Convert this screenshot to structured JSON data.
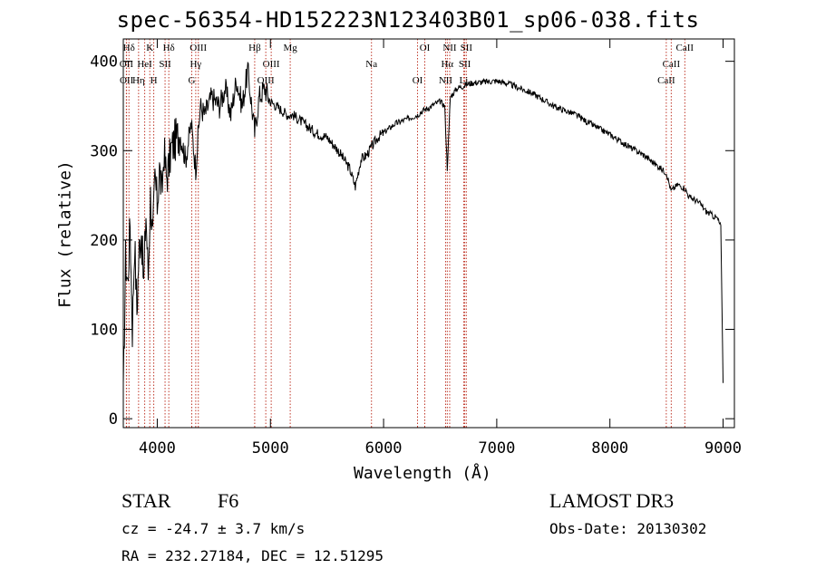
{
  "chart_data": {
    "type": "line",
    "title": "spec-56354-HD152223N123403B01_sp06-038.fits",
    "xlabel": "Wavelength (Å)",
    "ylabel": "Flux (relative)",
    "xlim": [
      3700,
      9100
    ],
    "ylim": [
      -10,
      425
    ],
    "xticks": [
      4000,
      5000,
      6000,
      7000,
      8000,
      9000
    ],
    "yticks": [
      0,
      100,
      200,
      300,
      400
    ],
    "series": [
      {
        "color": "#000000",
        "x": [
          3700,
          3720,
          3740,
          3760,
          3780,
          3800,
          3820,
          3840,
          3860,
          3880,
          3900,
          3920,
          3940,
          3960,
          3980,
          4000,
          4020,
          4040,
          4060,
          4080,
          4100,
          4120,
          4150,
          4200,
          4250,
          4300,
          4340,
          4380,
          4420,
          4480,
          4550,
          4600,
          4650,
          4700,
          4750,
          4800,
          4861,
          4900,
          4950,
          5000,
          5050,
          5100,
          5150,
          5200,
          5250,
          5300,
          5400,
          5500,
          5600,
          5700,
          5750,
          5800,
          5850,
          5900,
          5950,
          6000,
          6100,
          6200,
          6300,
          6350,
          6400,
          6450,
          6500,
          6540,
          6563,
          6590,
          6620,
          6650,
          6700,
          6750,
          6800,
          6900,
          7000,
          7100,
          7200,
          7300,
          7400,
          7500,
          7600,
          7700,
          7800,
          7900,
          8000,
          8100,
          8200,
          8300,
          8400,
          8500,
          8540,
          8600,
          8662,
          8700,
          8750,
          8800,
          8850,
          8900,
          8950,
          8980,
          9000
        ],
        "y": [
          20,
          180,
          150,
          220,
          100,
          200,
          120,
          190,
          210,
          150,
          230,
          160,
          250,
          200,
          270,
          240,
          280,
          250,
          300,
          270,
          280,
          300,
          310,
          320,
          290,
          330,
          280,
          350,
          340,
          360,
          350,
          370,
          340,
          380,
          350,
          390,
          320,
          360,
          370,
          355,
          350,
          345,
          340,
          340,
          335,
          330,
          320,
          315,
          300,
          280,
          260,
          290,
          295,
          305,
          315,
          320,
          330,
          335,
          340,
          345,
          348,
          352,
          355,
          350,
          280,
          360,
          365,
          370,
          372,
          375,
          376,
          377,
          378,
          375,
          370,
          365,
          358,
          350,
          345,
          340,
          332,
          325,
          318,
          310,
          302,
          295,
          285,
          275,
          255,
          262,
          258,
          248,
          245,
          240,
          232,
          228,
          224,
          215,
          40
        ]
      }
    ],
    "line_markers": [
      {
        "label": "Hδ",
        "x": 3750
      },
      {
        "label": "OII",
        "x": 3727
      },
      {
        "label": "OII",
        "x": 3729
      },
      {
        "label": "K",
        "x": 3934
      },
      {
        "label": "HeI",
        "x": 3889
      },
      {
        "label": "Hη",
        "x": 3835
      },
      {
        "label": "Hδ",
        "x": 4102
      },
      {
        "label": "SII",
        "x": 4069
      },
      {
        "label": "H",
        "x": 3969
      },
      {
        "label": "OIII",
        "x": 4363
      },
      {
        "label": "Hγ",
        "x": 4340
      },
      {
        "label": "G",
        "x": 4305
      },
      {
        "label": "Hβ",
        "x": 4861
      },
      {
        "label": "OIII",
        "x": 5007
      },
      {
        "label": "OIII",
        "x": 4959
      },
      {
        "label": "Mg",
        "x": 5175
      },
      {
        "label": "Na",
        "x": 5893
      },
      {
        "label": "OI",
        "x": 6300
      },
      {
        "label": "OI",
        "x": 6364
      },
      {
        "label": "Hα",
        "x": 6563
      },
      {
        "label": "NII",
        "x": 6548
      },
      {
        "label": "NII",
        "x": 6584
      },
      {
        "label": "SII",
        "x": 6717
      },
      {
        "label": "Li",
        "x": 6708
      },
      {
        "label": "SII",
        "x": 6731
      },
      {
        "label": "CaII",
        "x": 8542
      },
      {
        "label": "CaII",
        "x": 8498
      },
      {
        "label": "CaII",
        "x": 8662
      }
    ]
  },
  "info": {
    "object_class": "STAR",
    "subclass": "F6",
    "survey": "LAMOST DR3",
    "cz": "cz = -24.7 ± 3.7 km/s",
    "obs_date": "Obs-Date: 20130302",
    "coords": "RA = 232.27184, DEC =  12.51295"
  },
  "colors": {
    "marker_line": "#c0392b",
    "spectrum": "#000000"
  }
}
